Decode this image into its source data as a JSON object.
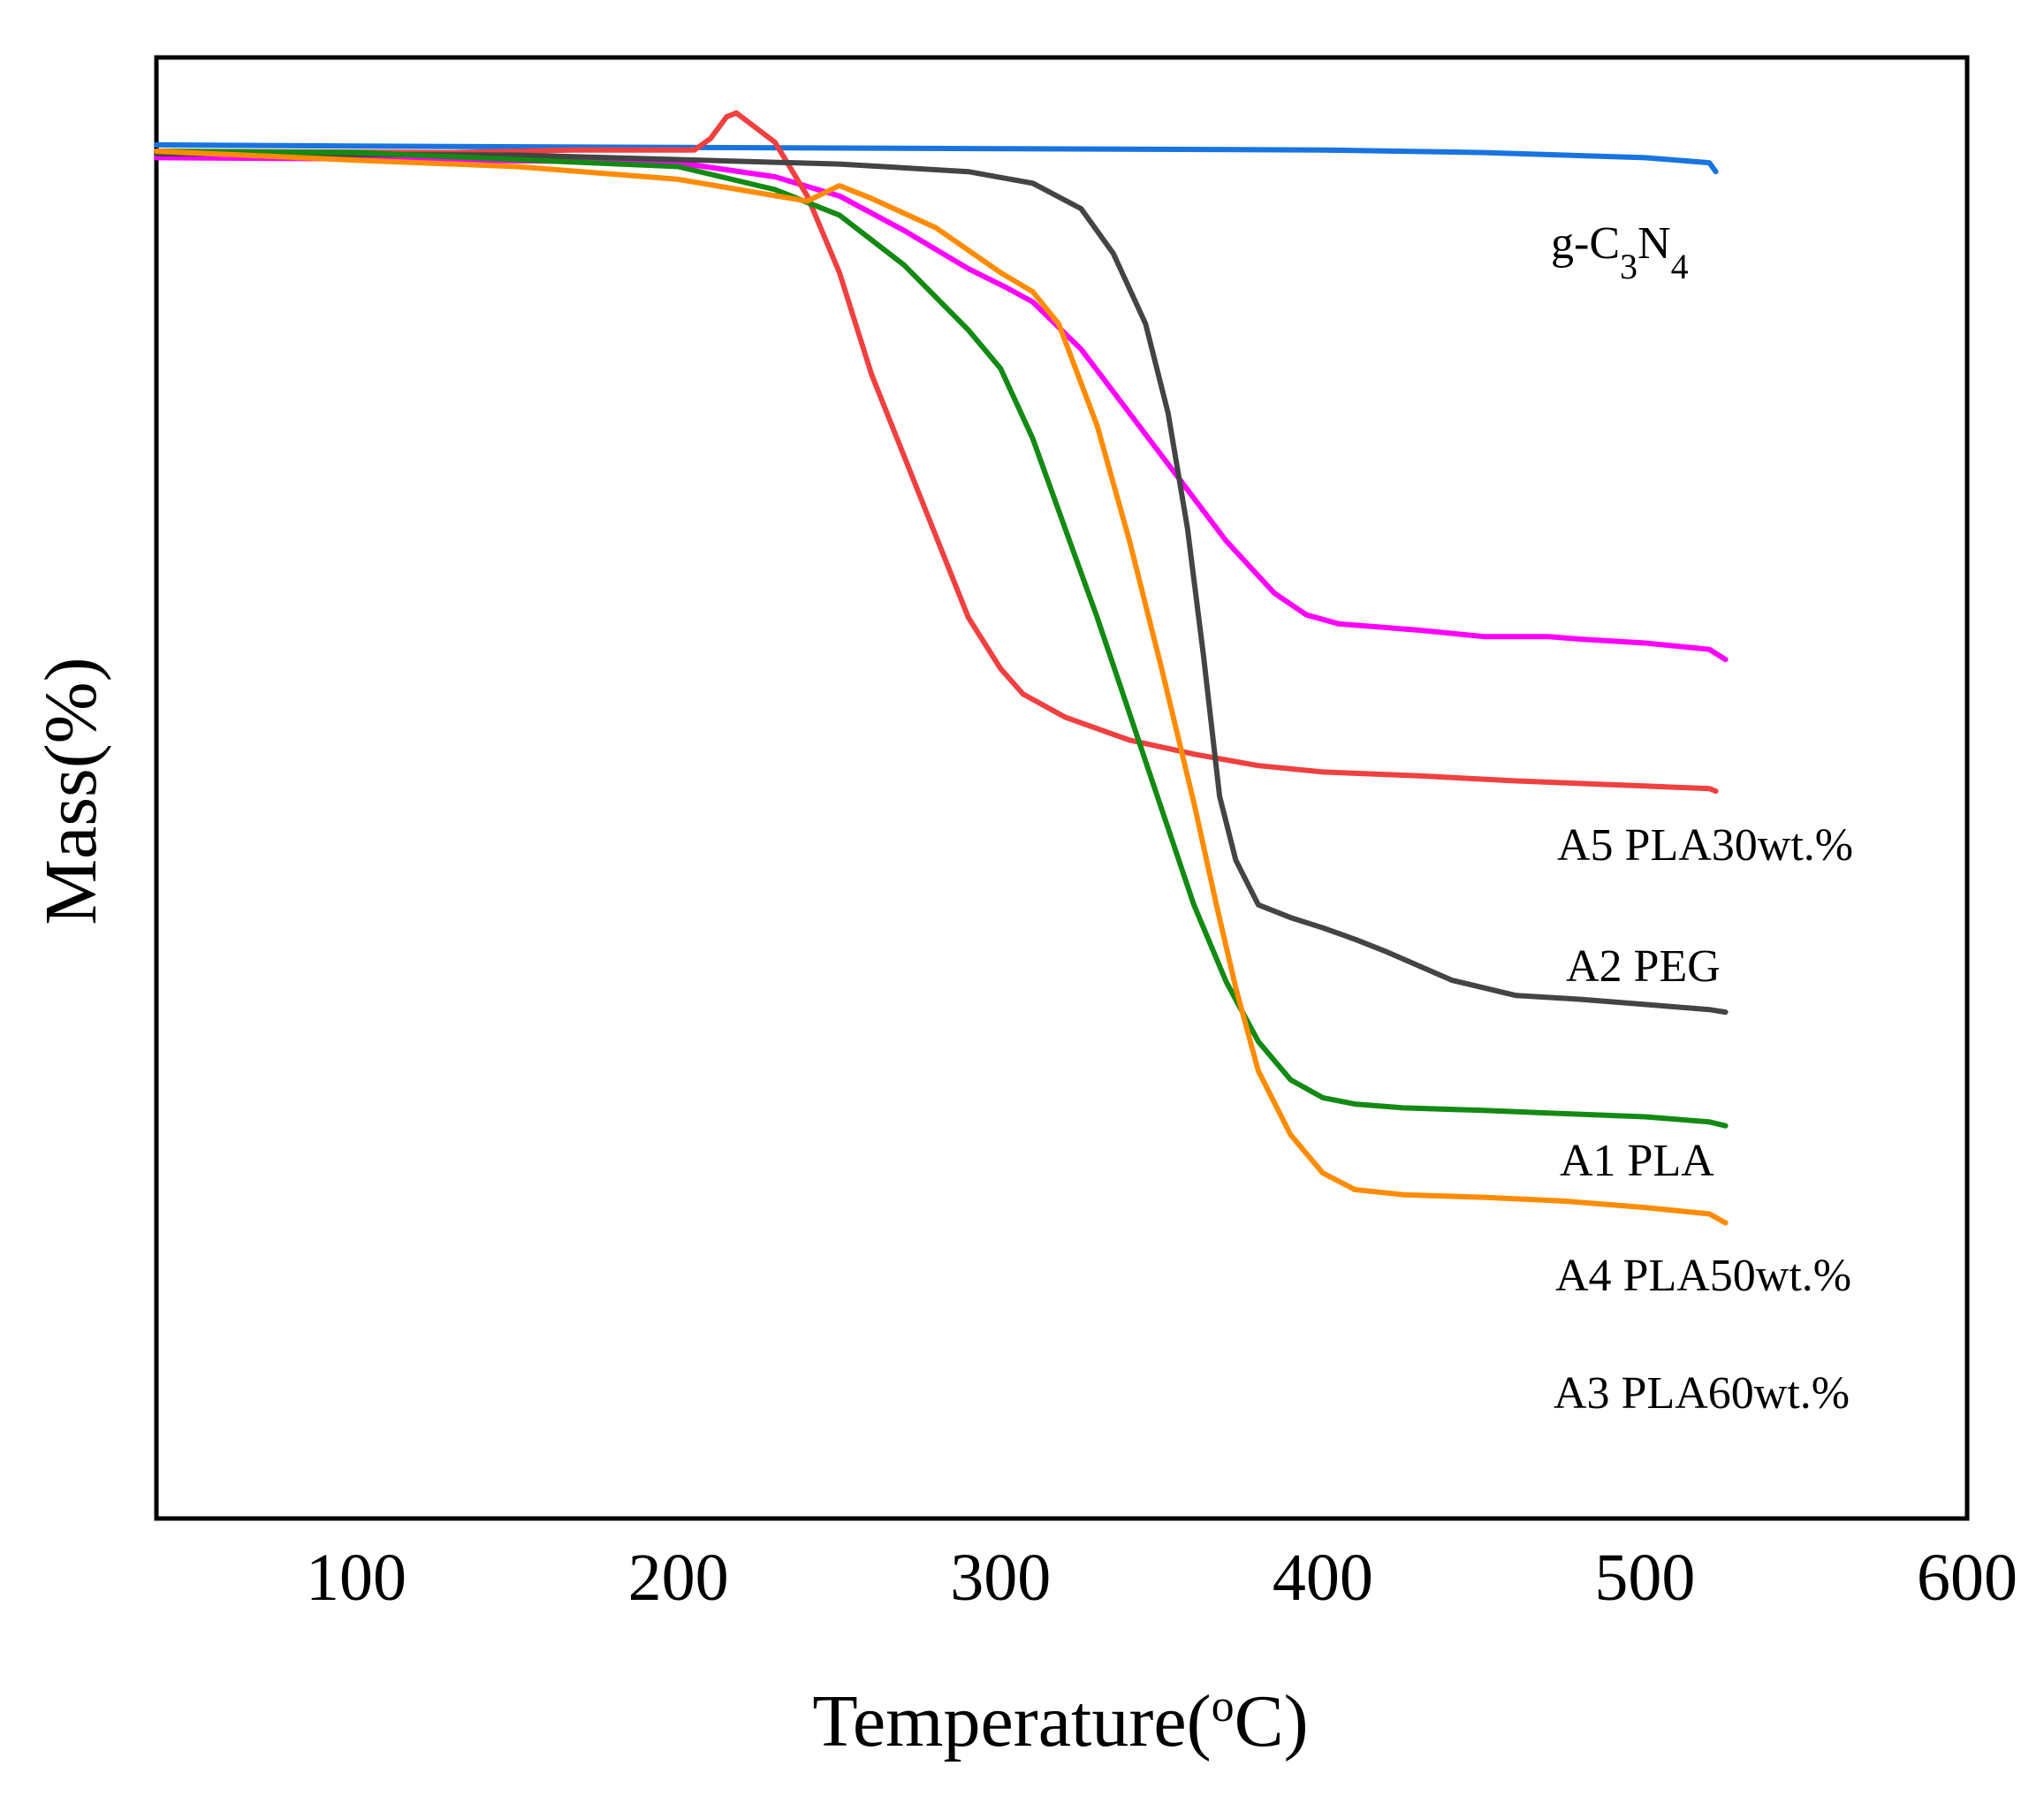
{
  "chart_data": {
    "type": "line",
    "title": "",
    "xlabel_main": "Temperature(",
    "xlabel_sup": "o",
    "xlabel_end": "C)",
    "ylabel": "Mass(%)",
    "xlim": [
      38,
      600
    ],
    "ylim": [
      0,
      100
    ],
    "xticks": [
      100,
      200,
      300,
      400,
      500,
      600
    ],
    "yticks": [],
    "grid": false,
    "legend": "inline labels at right end of curves",
    "series": [
      {
        "name": "g-C3N4",
        "label_parts": [
          {
            "t": "g-C"
          },
          {
            "t": "3",
            "sub": true
          },
          {
            "t": "N"
          },
          {
            "t": "4",
            "sub": true
          }
        ],
        "color": "#1874e0",
        "points": [
          [
            38,
            98
          ],
          [
            100,
            97.9
          ],
          [
            200,
            97.8
          ],
          [
            300,
            97.7
          ],
          [
            400,
            97.6
          ],
          [
            450,
            97.4
          ],
          [
            500,
            97.0
          ],
          [
            520,
            96.6
          ],
          [
            522,
            95.9
          ]
        ]
      },
      {
        "name": "A5 PLA30wt.%",
        "color": "#ff00ff",
        "points": [
          [
            38,
            97
          ],
          [
            100,
            96.9
          ],
          [
            200,
            96.6
          ],
          [
            230,
            95.5
          ],
          [
            250,
            94.0
          ],
          [
            270,
            91.3
          ],
          [
            290,
            88.3
          ],
          [
            302,
            86.8
          ],
          [
            310,
            85.7
          ],
          [
            325,
            82.0
          ],
          [
            340,
            77.0
          ],
          [
            355,
            72.0
          ],
          [
            370,
            67.0
          ],
          [
            385,
            62.9
          ],
          [
            395,
            61.2
          ],
          [
            405,
            60.5
          ],
          [
            430,
            60.0
          ],
          [
            450,
            59.5
          ],
          [
            470,
            59.5
          ],
          [
            480,
            59.3
          ],
          [
            500,
            59.0
          ],
          [
            520,
            58.5
          ],
          [
            525,
            57.7
          ]
        ]
      },
      {
        "name": "A2 PEG",
        "color": "#f04040",
        "points": [
          [
            38,
            97.5
          ],
          [
            130,
            97.4
          ],
          [
            168,
            97.6
          ],
          [
            205,
            97.6
          ],
          [
            210,
            98.5
          ],
          [
            215,
            100.2
          ],
          [
            218,
            100.5
          ],
          [
            230,
            98.2
          ],
          [
            240,
            94.0
          ],
          [
            250,
            88.0
          ],
          [
            260,
            80.0
          ],
          [
            275,
            70.5
          ],
          [
            290,
            61.0
          ],
          [
            300,
            57.0
          ],
          [
            307,
            55.0
          ],
          [
            320,
            53.2
          ],
          [
            340,
            51.4
          ],
          [
            360,
            50.3
          ],
          [
            380,
            49.4
          ],
          [
            400,
            48.9
          ],
          [
            430,
            48.6
          ],
          [
            460,
            48.2
          ],
          [
            500,
            47.8
          ],
          [
            520,
            47.6
          ],
          [
            522,
            47.4
          ]
        ]
      },
      {
        "name": "A1 PLA",
        "color": "#444444",
        "points": [
          [
            38,
            97.3
          ],
          [
            150,
            97.2
          ],
          [
            250,
            96.5
          ],
          [
            290,
            95.9
          ],
          [
            310,
            95.0
          ],
          [
            325,
            93.0
          ],
          [
            335,
            89.5
          ],
          [
            345,
            84.0
          ],
          [
            352,
            77.0
          ],
          [
            358,
            68.0
          ],
          [
            363,
            58.0
          ],
          [
            368,
            47.0
          ],
          [
            373,
            42.0
          ],
          [
            380,
            38.5
          ],
          [
            390,
            37.5
          ],
          [
            400,
            36.7
          ],
          [
            410,
            35.8
          ],
          [
            420,
            34.8
          ],
          [
            440,
            32.6
          ],
          [
            460,
            31.4
          ],
          [
            480,
            31.1
          ],
          [
            500,
            30.7
          ],
          [
            520,
            30.3
          ],
          [
            525,
            30.1
          ]
        ]
      },
      {
        "name": "A4 PLA50wt.%",
        "color": "#138a13",
        "points": [
          [
            38,
            97.5
          ],
          [
            100,
            97.4
          ],
          [
            200,
            96.3
          ],
          [
            230,
            94.5
          ],
          [
            250,
            92.5
          ],
          [
            270,
            88.6
          ],
          [
            290,
            83.5
          ],
          [
            300,
            80.5
          ],
          [
            310,
            75.0
          ],
          [
            320,
            68.0
          ],
          [
            330,
            61.0
          ],
          [
            340,
            53.5
          ],
          [
            350,
            46.0
          ],
          [
            360,
            38.5
          ],
          [
            370,
            32.5
          ],
          [
            380,
            27.8
          ],
          [
            390,
            24.8
          ],
          [
            400,
            23.4
          ],
          [
            410,
            22.9
          ],
          [
            425,
            22.6
          ],
          [
            450,
            22.4
          ],
          [
            470,
            22.2
          ],
          [
            500,
            21.9
          ],
          [
            520,
            21.5
          ],
          [
            525,
            21.2
          ]
        ]
      },
      {
        "name": "A3 PLA60wt.%",
        "color": "#ff8c00",
        "points": [
          [
            38,
            97.5
          ],
          [
            100,
            96.8
          ],
          [
            150,
            96.3
          ],
          [
            200,
            95.3
          ],
          [
            240,
            93.6
          ],
          [
            250,
            94.8
          ],
          [
            260,
            93.8
          ],
          [
            280,
            91.5
          ],
          [
            300,
            88.0
          ],
          [
            310,
            86.5
          ],
          [
            318,
            84.0
          ],
          [
            330,
            76.0
          ],
          [
            340,
            67.0
          ],
          [
            350,
            57.0
          ],
          [
            360,
            46.5
          ],
          [
            367,
            38.5
          ],
          [
            373,
            32.0
          ],
          [
            380,
            25.5
          ],
          [
            390,
            20.5
          ],
          [
            400,
            17.5
          ],
          [
            410,
            16.2
          ],
          [
            425,
            15.8
          ],
          [
            450,
            15.6
          ],
          [
            475,
            15.3
          ],
          [
            500,
            14.8
          ],
          [
            520,
            14.3
          ],
          [
            525,
            13.6
          ]
        ]
      }
    ]
  }
}
